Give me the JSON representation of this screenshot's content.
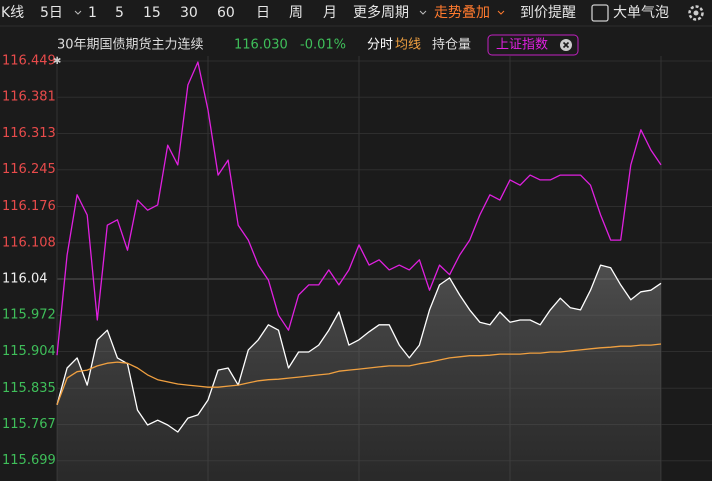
{
  "toolbar": {
    "periods": [
      "K线",
      "5日",
      "1",
      "5",
      "15",
      "30",
      "60",
      "日",
      "周",
      "月",
      "更多周期"
    ],
    "overlay": "走势叠加",
    "alert": "到价提醒",
    "bubble": "大单气泡"
  },
  "info": {
    "contract": "30年期国债期货主力连续",
    "price": "116.030",
    "change": "-0.01%",
    "open_interest": "持仓量"
  },
  "chart_data": {
    "type": "line",
    "ylim": [
      115.661,
      116.449
    ],
    "yticks": [
      116.449,
      116.381,
      116.313,
      116.245,
      116.176,
      116.108,
      116.04,
      115.972,
      115.904,
      115.835,
      115.767,
      115.699
    ],
    "grid": true,
    "series": [
      {
        "name": "分时",
        "color": "#ffffff",
        "area": true,
        "values": [
          115.804,
          115.873,
          115.892,
          115.841,
          115.926,
          115.944,
          115.892,
          115.881,
          115.794,
          115.766,
          115.775,
          115.766,
          115.753,
          115.779,
          115.785,
          115.813,
          115.869,
          115.873,
          115.841,
          115.907,
          115.926,
          115.954,
          115.944,
          115.873,
          115.903,
          115.903,
          115.916,
          115.944,
          115.978,
          115.916,
          115.926,
          115.941,
          115.954,
          115.954,
          115.916,
          115.892,
          115.916,
          115.982,
          116.029,
          116.042,
          116.01,
          115.982,
          115.959,
          115.954,
          115.978,
          115.959,
          115.963,
          115.963,
          115.954,
          115.982,
          116.004,
          115.986,
          115.982,
          116.019,
          116.066,
          116.061,
          116.029,
          116.001,
          116.016,
          116.019,
          116.032
        ]
      },
      {
        "name": "均线",
        "color": "#f0a040",
        "values": [
          115.804,
          115.854,
          115.866,
          115.869,
          115.877,
          115.882,
          115.884,
          115.882,
          115.873,
          115.86,
          115.851,
          115.847,
          115.843,
          115.841,
          115.839,
          115.837,
          115.837,
          115.839,
          115.841,
          115.845,
          115.849,
          115.851,
          115.852,
          115.854,
          115.856,
          115.858,
          115.86,
          115.862,
          115.867,
          115.869,
          115.871,
          115.873,
          115.875,
          115.877,
          115.877,
          115.877,
          115.881,
          115.884,
          115.888,
          115.892,
          115.894,
          115.896,
          115.896,
          115.897,
          115.899,
          115.899,
          115.899,
          115.901,
          115.901,
          115.903,
          115.903,
          115.905,
          115.907,
          115.909,
          115.911,
          115.912,
          115.914,
          115.914,
          115.916,
          115.916,
          115.918
        ]
      },
      {
        "name": "上证指数",
        "color": "#e020e0",
        "values": [
          115.897,
          116.085,
          116.198,
          116.16,
          115.963,
          116.141,
          116.151,
          116.094,
          116.188,
          116.169,
          116.179,
          116.291,
          116.254,
          116.404,
          116.447,
          116.357,
          116.235,
          116.263,
          116.141,
          116.113,
          116.066,
          116.038,
          115.972,
          115.944,
          116.01,
          116.029,
          116.029,
          116.057,
          116.029,
          116.057,
          116.104,
          116.066,
          116.076,
          116.057,
          116.066,
          116.057,
          116.076,
          116.019,
          116.066,
          116.048,
          116.085,
          116.113,
          116.16,
          116.198,
          116.188,
          116.226,
          116.216,
          116.235,
          116.226,
          116.226,
          116.235,
          116.235,
          116.235,
          116.216,
          116.16,
          116.113,
          116.113,
          116.254,
          116.32,
          116.282,
          116.254
        ]
      }
    ]
  }
}
